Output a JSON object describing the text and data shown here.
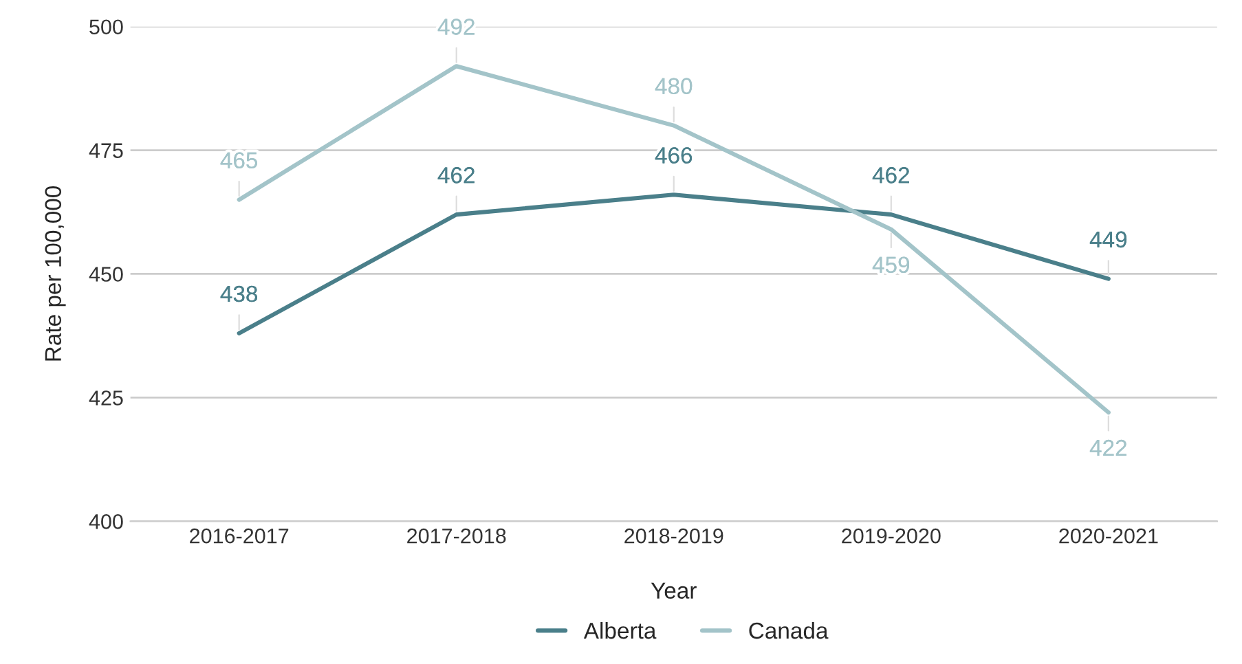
{
  "chart_data": {
    "type": "line",
    "xlabel": "Year",
    "ylabel": "Rate per 100,000",
    "categories": [
      "2016-2017",
      "2017-2018",
      "2018-2019",
      "2019-2020",
      "2020-2021"
    ],
    "series": [
      {
        "name": "Alberta",
        "color": "#4a7f8a",
        "values": [
          438,
          462,
          466,
          462,
          449
        ]
      },
      {
        "name": "Canada",
        "color": "#a3c4c9",
        "values": [
          465,
          492,
          480,
          459,
          422
        ]
      }
    ],
    "ylim": [
      400,
      500
    ],
    "yticks": [
      400,
      425,
      450,
      475,
      500
    ],
    "grid": "y",
    "legend": "bottom",
    "data_labels": true,
    "marker": "none",
    "line_style": "solid"
  }
}
